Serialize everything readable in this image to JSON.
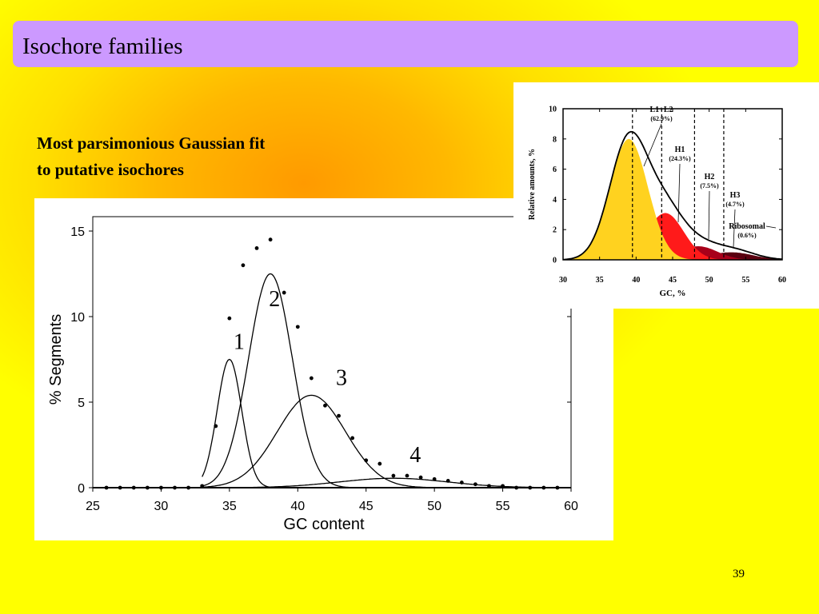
{
  "slide": {
    "title": "Isochore families",
    "subtitle_lines": [
      "Most parsimonious Gaussian fit",
      "to putative isochores"
    ],
    "slide_number": "39"
  },
  "chart_data": [
    {
      "type": "scatter",
      "xlabel": "GC content",
      "ylabel": "% Segments",
      "xlim": [
        25,
        60
      ],
      "ylim": [
        0,
        15
      ],
      "xticks": [
        25,
        30,
        35,
        40,
        45,
        50,
        55,
        60
      ],
      "yticks": [
        0,
        5,
        10,
        15
      ],
      "points": [
        [
          26,
          0
        ],
        [
          27,
          0
        ],
        [
          28,
          0
        ],
        [
          29,
          0
        ],
        [
          30,
          0
        ],
        [
          31,
          0
        ],
        [
          32,
          0
        ],
        [
          33,
          0.1
        ],
        [
          34,
          3.6
        ],
        [
          35,
          9.9
        ],
        [
          36,
          13
        ],
        [
          37,
          14
        ],
        [
          38,
          14.5
        ],
        [
          39,
          11.4
        ],
        [
          40,
          9.4
        ],
        [
          41,
          6.4
        ],
        [
          42,
          4.8
        ],
        [
          43,
          4.2
        ],
        [
          44,
          2.9
        ],
        [
          45,
          1.6
        ],
        [
          46,
          1.4
        ],
        [
          47,
          0.7
        ],
        [
          48,
          0.7
        ],
        [
          49,
          0.6
        ],
        [
          50,
          0.5
        ],
        [
          51,
          0.4
        ],
        [
          52,
          0.3
        ],
        [
          53,
          0.2
        ],
        [
          54,
          0.1
        ],
        [
          55,
          0.1
        ],
        [
          56,
          0
        ],
        [
          57,
          0
        ],
        [
          58,
          0
        ],
        [
          59,
          0
        ]
      ],
      "curves": [
        {
          "name": "1",
          "mean": 35,
          "sd": 0.9,
          "peak": 7.5
        },
        {
          "name": "2",
          "mean": 38,
          "sd": 1.6,
          "peak": 12.5
        },
        {
          "name": "3",
          "mean": 41,
          "sd": 2.5,
          "peak": 5.4
        },
        {
          "name": "4",
          "mean": 47,
          "sd": 4.0,
          "peak": 0.55
        }
      ]
    },
    {
      "type": "area",
      "xlabel": "GC, %",
      "ylabel": "Relative amounts, %",
      "xlim": [
        30,
        60
      ],
      "ylim": [
        0,
        10
      ],
      "xticks": [
        30,
        35,
        40,
        45,
        50,
        55,
        60
      ],
      "yticks": [
        0,
        2,
        4,
        6,
        8,
        10
      ],
      "dashed_lines_x": [
        39.5,
        43.5,
        48,
        52
      ],
      "envelope": "sum of components",
      "components": [
        {
          "name": "L1+L2",
          "percent": "(62.9%)",
          "mean": 39,
          "sd": 2.6,
          "peak": 8,
          "color": "#ffd21f"
        },
        {
          "name": "H1",
          "percent": "(24.3%)",
          "mean": 44,
          "sd": 2.5,
          "peak": 3.1,
          "color": "#ff1a1a"
        },
        {
          "name": "H2",
          "percent": "(7.5%)",
          "mean": 48.5,
          "sd": 2.6,
          "peak": 0.9,
          "color": "#a8001a"
        },
        {
          "name": "H3",
          "percent": "(4.7%)",
          "mean": 53,
          "sd": 3,
          "peak": 0.5,
          "color": "#5a0010"
        },
        {
          "name": "Ribosomal",
          "percent": "(0.6%)",
          "mean": 54,
          "sd": 2.5,
          "peak": 0.15,
          "color": "#2a0008"
        }
      ]
    }
  ]
}
